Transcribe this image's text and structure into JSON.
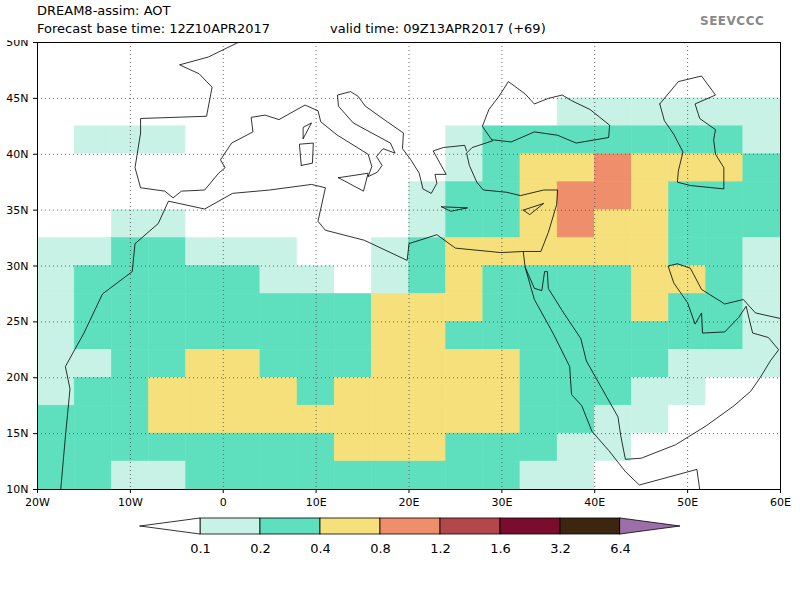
{
  "chart_data": {
    "type": "heatmap",
    "title": "DREAM8-assim: AOT",
    "subtitle": "Forecast base time: 12Z10APR2017",
    "valid_time": "valid time: 09Z13APR2017 (+69)",
    "logo": "SEEVCCC",
    "x": [
      -18,
      -14,
      -10,
      -6,
      -2,
      2,
      6,
      10,
      14,
      18,
      22,
      26,
      30,
      34,
      38,
      42,
      46,
      50,
      54,
      58
    ],
    "y": [
      48.75,
      46.25,
      43.75,
      41.25,
      38.75,
      36.25,
      33.75,
      31.25,
      28.75,
      26.25,
      23.75,
      21.25,
      18.75,
      16.25,
      13.75,
      11.25
    ],
    "values": [
      [
        0.05,
        0.05,
        0.05,
        0.05,
        0.05,
        0.05,
        0.05,
        0.05,
        0.05,
        0.05,
        0.05,
        0.05,
        0.05,
        0.05,
        0.05,
        0.05,
        0.05,
        0.05,
        0.05,
        0.05
      ],
      [
        0.05,
        0.05,
        0.05,
        0.05,
        0.05,
        0.05,
        0.05,
        0.05,
        0.05,
        0.05,
        0.05,
        0.05,
        0.05,
        0.05,
        0.05,
        0.05,
        0.05,
        0.05,
        0.05,
        0.05
      ],
      [
        0.05,
        0.05,
        0.05,
        0.05,
        0.05,
        0.05,
        0.05,
        0.05,
        0.05,
        0.05,
        0.05,
        0.05,
        0.05,
        0.05,
        0.15,
        0.15,
        0.15,
        0.15,
        0.15,
        0.15
      ],
      [
        0.05,
        0.15,
        0.15,
        0.15,
        0.05,
        0.05,
        0.05,
        0.05,
        0.05,
        0.05,
        0.05,
        0.15,
        0.3,
        0.3,
        0.3,
        0.3,
        0.3,
        0.3,
        0.3,
        0.15
      ],
      [
        0.05,
        0.05,
        0.05,
        0.05,
        0.05,
        0.05,
        0.05,
        0.05,
        0.05,
        0.05,
        0.05,
        0.15,
        0.3,
        0.6,
        0.6,
        1.0,
        0.6,
        0.6,
        0.6,
        0.3
      ],
      [
        0.05,
        0.05,
        0.05,
        0.05,
        0.05,
        0.05,
        0.05,
        0.05,
        0.05,
        0.05,
        0.15,
        0.3,
        0.3,
        0.6,
        1.0,
        1.0,
        0.6,
        0.3,
        0.3,
        0.3
      ],
      [
        0.05,
        0.05,
        0.15,
        0.15,
        0.05,
        0.05,
        0.05,
        0.05,
        0.05,
        0.05,
        0.15,
        0.3,
        0.3,
        0.6,
        1.0,
        0.6,
        0.6,
        0.3,
        0.3,
        0.3
      ],
      [
        0.15,
        0.15,
        0.3,
        0.3,
        0.15,
        0.15,
        0.15,
        0.05,
        0.05,
        0.15,
        0.3,
        0.6,
        0.6,
        0.6,
        0.6,
        0.6,
        0.6,
        0.3,
        0.3,
        0.15
      ],
      [
        0.15,
        0.3,
        0.3,
        0.3,
        0.3,
        0.3,
        0.15,
        0.15,
        0.05,
        0.15,
        0.3,
        0.6,
        0.3,
        0.3,
        0.3,
        0.3,
        0.6,
        0.6,
        0.3,
        0.15
      ],
      [
        0.15,
        0.3,
        0.3,
        0.3,
        0.3,
        0.3,
        0.3,
        0.3,
        0.3,
        0.6,
        0.6,
        0.6,
        0.3,
        0.3,
        0.3,
        0.3,
        0.6,
        0.3,
        0.3,
        0.15
      ],
      [
        0.15,
        0.3,
        0.3,
        0.3,
        0.3,
        0.3,
        0.3,
        0.3,
        0.3,
        0.6,
        0.6,
        0.3,
        0.3,
        0.3,
        0.3,
        0.3,
        0.3,
        0.3,
        0.3,
        0.15
      ],
      [
        0.15,
        0.15,
        0.3,
        0.3,
        0.6,
        0.6,
        0.3,
        0.3,
        0.3,
        0.6,
        0.6,
        0.6,
        0.6,
        0.3,
        0.3,
        0.3,
        0.3,
        0.15,
        0.15,
        0.15
      ],
      [
        0.15,
        0.3,
        0.3,
        0.6,
        0.6,
        0.6,
        0.6,
        0.3,
        0.6,
        0.6,
        0.6,
        0.6,
        0.6,
        0.3,
        0.3,
        0.3,
        0.15,
        0.15,
        0.05,
        0.05
      ],
      [
        0.3,
        0.3,
        0.3,
        0.6,
        0.6,
        0.6,
        0.6,
        0.6,
        0.6,
        0.6,
        0.6,
        0.6,
        0.6,
        0.3,
        0.3,
        0.15,
        0.15,
        0.05,
        0.05,
        0.05
      ],
      [
        0.3,
        0.3,
        0.3,
        0.3,
        0.3,
        0.3,
        0.3,
        0.3,
        0.6,
        0.6,
        0.6,
        0.3,
        0.3,
        0.3,
        0.15,
        0.15,
        0.05,
        0.05,
        0.05,
        0.05
      ],
      [
        0.3,
        0.3,
        0.15,
        0.15,
        0.3,
        0.3,
        0.3,
        0.3,
        0.3,
        0.3,
        0.3,
        0.3,
        0.3,
        0.15,
        0.15,
        0.05,
        0.05,
        0.05,
        0.05,
        0.05
      ]
    ],
    "xlim": [
      -20,
      60
    ],
    "ylim": [
      10,
      50
    ],
    "xticks": [
      {
        "value": -20,
        "label": "20W"
      },
      {
        "value": -10,
        "label": "10W"
      },
      0,
      {
        "value": 10,
        "label": "10E"
      },
      {
        "value": 20,
        "label": "20E"
      },
      {
        "value": 30,
        "label": "30E"
      },
      {
        "value": 40,
        "label": "40E"
      },
      {
        "value": 50,
        "label": "50E"
      },
      {
        "value": 60,
        "label": "60E"
      }
    ],
    "yticks": [
      {
        "value": 10,
        "label": "10N"
      },
      {
        "value": 15,
        "label": "15N"
      },
      {
        "value": 20,
        "label": "20N"
      },
      {
        "value": 25,
        "label": "25N"
      },
      {
        "value": 30,
        "label": "30N"
      },
      {
        "value": 35,
        "label": "35N"
      },
      {
        "value": 40,
        "label": "40N"
      },
      {
        "value": 45,
        "label": "45N"
      },
      {
        "value": 50,
        "label": "50N"
      }
    ],
    "grid": true,
    "colorbar": {
      "ticks": [
        0.1,
        0.2,
        0.4,
        0.8,
        1.2,
        1.6,
        3.2,
        6.4
      ],
      "colors": [
        "#ffffff",
        "#c8f2e6",
        "#5ee0be",
        "#f6e07c",
        "#ee8e6a",
        "#b2484a",
        "#7a0c2e",
        "#3d2510",
        "#9c6fa8"
      ]
    },
    "coastlines": [
      [
        [
          -17.5,
          10
        ],
        [
          -17,
          14.7
        ],
        [
          -16.5,
          19
        ],
        [
          -17,
          21
        ],
        [
          -15,
          24
        ],
        [
          -13,
          27.5
        ],
        [
          -9.8,
          29.5
        ],
        [
          -9.5,
          32
        ],
        [
          -7,
          33.8
        ],
        [
          -5.9,
          35.8
        ],
        [
          -2,
          35.1
        ],
        [
          1,
          36.5
        ],
        [
          5,
          36.8
        ],
        [
          9.5,
          37.3
        ],
        [
          11,
          37
        ],
        [
          10.2,
          34
        ],
        [
          11,
          33.2
        ],
        [
          15.2,
          32.3
        ],
        [
          19.8,
          30.5
        ],
        [
          20,
          32
        ],
        [
          23,
          32.8
        ],
        [
          25,
          31.6
        ],
        [
          29.9,
          31.2
        ],
        [
          32.3,
          31.3
        ],
        [
          34.2,
          31.3
        ],
        [
          35,
          33
        ],
        [
          35.9,
          35.5
        ],
        [
          36,
          36.8
        ],
        [
          34.5,
          36.8
        ],
        [
          32,
          36.3
        ],
        [
          30.5,
          36.6
        ],
        [
          28,
          36.8
        ],
        [
          27.3,
          37.5
        ],
        [
          26.5,
          39
        ],
        [
          26.2,
          40.1
        ],
        [
          26.8,
          40.6
        ],
        [
          29,
          41.2
        ]
      ],
      [
        [
          28.9,
          41.3
        ],
        [
          31,
          41.1
        ],
        [
          33.5,
          42
        ],
        [
          36,
          41.7
        ],
        [
          38,
          41
        ],
        [
          41.5,
          41.5
        ],
        [
          41.6,
          42.6
        ],
        [
          39.5,
          44
        ],
        [
          37.5,
          44.8
        ],
        [
          36.5,
          45.3
        ],
        [
          35,
          45
        ],
        [
          33.5,
          44.5
        ],
        [
          32.5,
          45.4
        ],
        [
          30.7,
          46.5
        ],
        [
          29.7,
          45.2
        ],
        [
          28.6,
          44
        ],
        [
          27.9,
          42.5
        ],
        [
          28.9,
          41.3
        ]
      ],
      [
        [
          32.3,
          31.3
        ],
        [
          32.5,
          29.9
        ],
        [
          33.5,
          27
        ],
        [
          35.5,
          24
        ],
        [
          37.3,
          21
        ],
        [
          37.5,
          18.5
        ],
        [
          38.6,
          17.5
        ],
        [
          39.7,
          15.2
        ],
        [
          41.5,
          13.5
        ],
        [
          43.3,
          11.6
        ],
        [
          44.8,
          10.4
        ],
        [
          51,
          11.8
        ],
        [
          51.3,
          10
        ]
      ],
      [
        [
          32.5,
          29.9
        ],
        [
          33.5,
          28
        ],
        [
          34.3,
          27.8
        ],
        [
          34.6,
          29.5
        ],
        [
          34.9,
          29.5
        ],
        [
          35,
          28
        ],
        [
          36.5,
          26
        ],
        [
          38.5,
          23.5
        ],
        [
          39.1,
          21.5
        ],
        [
          40.8,
          19
        ],
        [
          42.5,
          16.5
        ],
        [
          42.8,
          14.8
        ],
        [
          43.3,
          12.7
        ],
        [
          45,
          12.8
        ],
        [
          48.7,
          14
        ],
        [
          52,
          15.7
        ],
        [
          55,
          17.5
        ],
        [
          56.8,
          18.8
        ],
        [
          57.8,
          20
        ],
        [
          58.9,
          21.5
        ],
        [
          59.8,
          22.5
        ],
        [
          58.7,
          23.6
        ],
        [
          57,
          24
        ],
        [
          56.3,
          26.4
        ],
        [
          55.5,
          25.4
        ],
        [
          54,
          24.1
        ],
        [
          51.6,
          24
        ],
        [
          51.5,
          25.8
        ],
        [
          50.8,
          24.8
        ],
        [
          50,
          26.7
        ],
        [
          48.5,
          28.5
        ],
        [
          47.9,
          30
        ],
        [
          48.9,
          30.2
        ],
        [
          50.3,
          29.8
        ],
        [
          51.5,
          27.9
        ],
        [
          54,
          26.6
        ],
        [
          56,
          27
        ],
        [
          57.3,
          25.8
        ],
        [
          60,
          25.3
        ]
      ],
      [
        [
          47,
          44.5
        ],
        [
          47.5,
          43
        ],
        [
          48.5,
          41.8
        ],
        [
          49.5,
          40.2
        ],
        [
          49,
          38.5
        ],
        [
          48.9,
          37.5
        ],
        [
          50.3,
          37.2
        ],
        [
          53.9,
          36.9
        ],
        [
          53.9,
          38.8
        ],
        [
          53,
          40
        ],
        [
          52.8,
          41.3
        ],
        [
          53,
          42.2
        ],
        [
          51.3,
          43.2
        ],
        [
          50.8,
          44.5
        ],
        [
          53,
          45.3
        ],
        [
          51.5,
          47
        ],
        [
          49,
          46.5
        ],
        [
          47,
          44.5
        ]
      ],
      [
        [
          1.6,
          50
        ],
        [
          -1.6,
          48.7
        ],
        [
          -4.7,
          48
        ],
        [
          -2.6,
          47.2
        ],
        [
          -1.2,
          46
        ],
        [
          -1.8,
          43.4
        ],
        [
          -8.9,
          43.2
        ],
        [
          -8.9,
          41.9
        ],
        [
          -9.5,
          38.8
        ],
        [
          -8.9,
          37
        ],
        [
          -6.3,
          36.7
        ],
        [
          -5.4,
          36.1
        ],
        [
          -4.5,
          36.7
        ],
        [
          -2,
          36.8
        ],
        [
          -0.5,
          38.3
        ],
        [
          0.2,
          38.8
        ],
        [
          -0.3,
          39.5
        ],
        [
          0.9,
          41
        ],
        [
          3.2,
          42
        ],
        [
          3,
          43.3
        ],
        [
          4.5,
          43.5
        ],
        [
          6,
          43.1
        ],
        [
          7.5,
          43.8
        ],
        [
          8.8,
          44.4
        ],
        [
          10.2,
          43.9
        ],
        [
          10.5,
          42.9
        ],
        [
          12.3,
          41.7
        ],
        [
          15.6,
          40
        ],
        [
          16,
          38.9
        ],
        [
          15.6,
          38
        ],
        [
          16.6,
          38.4
        ],
        [
          17.1,
          39
        ],
        [
          16.5,
          39.8
        ],
        [
          17.2,
          40.5
        ],
        [
          18.5,
          40.1
        ],
        [
          18,
          41
        ],
        [
          16,
          41.9
        ],
        [
          14,
          42.8
        ],
        [
          12.4,
          44.3
        ],
        [
          12.3,
          45.3
        ],
        [
          13.7,
          45.6
        ],
        [
          14.5,
          45.2
        ],
        [
          15.3,
          44.3
        ],
        [
          17.5,
          43
        ],
        [
          19.4,
          41.9
        ],
        [
          19.3,
          40.5
        ],
        [
          20.2,
          39.5
        ],
        [
          21.1,
          38.3
        ],
        [
          21.5,
          36.9
        ],
        [
          22.4,
          36.5
        ],
        [
          23,
          37.4
        ],
        [
          22.8,
          38.2
        ],
        [
          24,
          38.2
        ],
        [
          22.6,
          40.3
        ],
        [
          23.7,
          40.6
        ],
        [
          26,
          40.8
        ],
        [
          26.2,
          40.3
        ]
      ],
      [
        [
          12.4,
          37.9
        ],
        [
          15.6,
          38.3
        ],
        [
          15.1,
          36.7
        ],
        [
          12.4,
          37.9
        ]
      ],
      [
        [
          8.4,
          39
        ],
        [
          9.6,
          39.2
        ],
        [
          9.7,
          41
        ],
        [
          8.2,
          40.9
        ],
        [
          8.4,
          39
        ]
      ],
      [
        [
          8.6,
          41.4
        ],
        [
          9.5,
          42.8
        ],
        [
          8.6,
          42.4
        ],
        [
          8.6,
          41.4
        ]
      ],
      [
        [
          23.5,
          35.3
        ],
        [
          26.3,
          35.2
        ],
        [
          24.5,
          34.9
        ],
        [
          23.5,
          35.3
        ]
      ],
      [
        [
          32.3,
          35
        ],
        [
          34.5,
          35.6
        ],
        [
          33,
          34.6
        ],
        [
          32.3,
          35
        ]
      ]
    ]
  }
}
